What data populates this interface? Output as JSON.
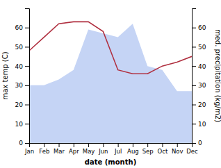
{
  "chart_data": {
    "type": "area",
    "categories": [
      "Jan",
      "Feb",
      "Mar",
      "Apr",
      "May",
      "Jun",
      "Jul",
      "Aug",
      "Sep",
      "Oct",
      "Nov",
      "Dec"
    ],
    "series": [
      {
        "type": "area",
        "color": "#c5d4f5",
        "values": [
          30,
          30,
          33,
          38,
          59,
          57,
          55,
          62,
          40,
          38,
          27,
          27
        ]
      },
      {
        "type": "line",
        "color": "#b03040",
        "axis": "y2",
        "values": [
          48,
          55,
          62,
          63,
          63,
          58,
          38,
          36,
          36,
          40,
          42,
          45
        ]
      }
    ],
    "xlabel": "date (month)",
    "ylabel": "max temp (C)",
    "y2label": "med. precipitation (kg/m2)",
    "ylim": [
      0,
      70
    ],
    "yticks": [
      0,
      10,
      20,
      30,
      40,
      50,
      60
    ],
    "y2lim": [
      0,
      70
    ],
    "y2ticks": [
      0,
      10,
      20,
      30,
      40,
      50,
      60
    ]
  }
}
